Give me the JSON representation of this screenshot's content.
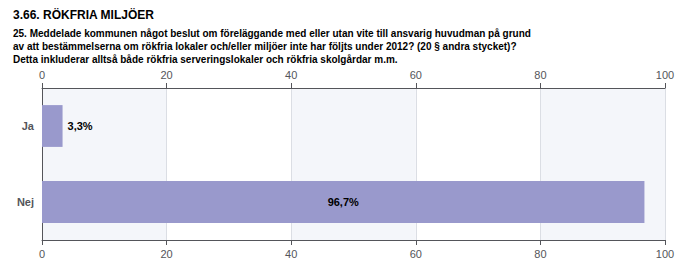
{
  "chart_data": {
    "type": "bar",
    "orientation": "horizontal",
    "title": "3.66. RÖKFRIA MILJÖER",
    "subtitle": "25. Meddelade kommunen något beslut om föreläggande med eller utan vite till ansvarig huvudman på grund\nav att bestämmelserna om rökfria lokaler och/eller miljöer inte har följts under 2012? (20 § andra stycket)?\nDetta inkluderar alltså både rökfria serveringslokaler och rökfria skolgårdar m.m.",
    "categories": [
      "Ja",
      "Nej"
    ],
    "values": [
      3.3,
      96.7
    ],
    "value_labels": [
      "3,3%",
      "96,7%"
    ],
    "color": "#9999cc",
    "xlim": [
      0,
      100
    ],
    "xticks": [
      0,
      20,
      40,
      60,
      80,
      100
    ],
    "grid": true,
    "data_labels": true
  }
}
